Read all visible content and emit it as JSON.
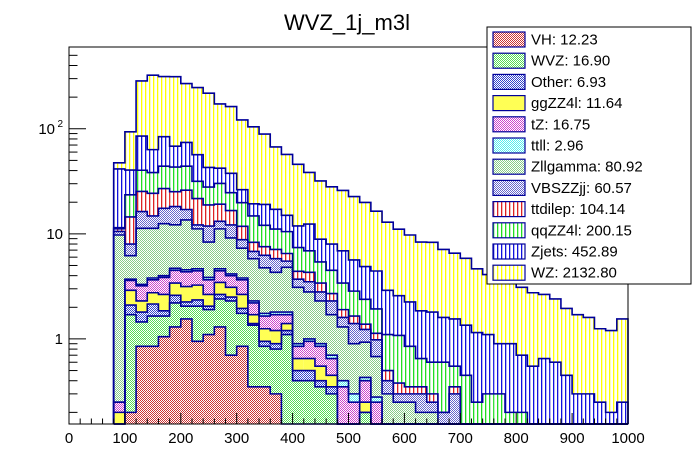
{
  "chart_data": {
    "type": "bar",
    "stacked": true,
    "title": "WVZ_1j_m3l",
    "xlabel": "",
    "ylabel": "",
    "yscale": "log",
    "xlim": [
      0,
      1000
    ],
    "ylim": [
      0.155,
      600
    ],
    "bin_width": 20,
    "x_bin_low_edges": [
      80,
      100,
      120,
      140,
      160,
      180,
      200,
      220,
      240,
      260,
      280,
      300,
      320,
      340,
      360,
      380,
      400,
      420,
      440,
      460,
      480,
      500,
      520,
      540,
      560,
      580,
      600,
      620,
      640,
      660,
      680,
      700,
      720,
      740,
      760,
      780,
      800,
      820,
      840,
      860,
      880,
      900,
      920,
      940,
      960,
      980
    ],
    "x_ticks": [
      "0",
      "100",
      "200",
      "300",
      "400",
      "500",
      "600",
      "700",
      "800",
      "900",
      "1000"
    ],
    "x_tick_values": [
      0,
      100,
      200,
      300,
      400,
      500,
      600,
      700,
      800,
      900,
      1000
    ],
    "y_ticks": [
      "1",
      "10",
      "10^2"
    ],
    "y_tick_values": [
      1,
      10,
      100
    ],
    "legend_position": "top-right",
    "cumulative_tops_note": "series values are per-bin contributions read from the stacked boundaries",
    "series": [
      {
        "name": "VH",
        "legend": "VH: 12.23",
        "fill": "#cc3333",
        "pattern": "checker",
        "values": [
          0,
          0.2,
          0.85,
          0.85,
          1.05,
          1.3,
          1.55,
          0.95,
          1.1,
          1.3,
          0.7,
          0.85,
          0.35,
          0.35,
          0.3,
          0,
          0,
          0,
          0,
          0,
          0,
          0,
          0,
          0,
          0,
          0,
          0,
          0,
          0,
          0,
          0,
          0,
          0,
          0,
          0,
          0,
          0,
          0,
          0,
          0,
          0,
          0,
          0,
          0,
          0,
          0
        ]
      },
      {
        "name": "WVZ",
        "legend": "WVZ: 16.90",
        "fill": "#55dd55",
        "pattern": "checker",
        "values": [
          0,
          1.5,
          0.6,
          0.8,
          0.6,
          0.9,
          0.5,
          1.1,
          0.8,
          1.1,
          1.6,
          0.9,
          1.0,
          0.5,
          0.5,
          1.1,
          0.4,
          0.4,
          0.35,
          0.3,
          0.0,
          0,
          0.2,
          0.15,
          0,
          0,
          0,
          0,
          0,
          0,
          0,
          0,
          0,
          0,
          0,
          0,
          0,
          0,
          0,
          0,
          0,
          0,
          0,
          0,
          0,
          0
        ]
      },
      {
        "name": "Other",
        "legend": "Other: 6.93",
        "fill": "#3344cc",
        "pattern": "checker",
        "values": [
          0.15,
          0.4,
          0.35,
          0.5,
          0.2,
          0.4,
          0.2,
          0.3,
          0.15,
          0.25,
          0.2,
          0.2,
          0.05,
          0.1,
          0.1,
          0.1,
          0.1,
          0.1,
          0.05,
          0.05,
          0.05,
          0,
          0,
          0,
          0,
          0,
          0,
          0,
          0,
          0,
          0,
          0,
          0,
          0,
          0,
          0,
          0,
          0,
          0,
          0,
          0,
          0,
          0,
          0,
          0,
          0
        ]
      },
      {
        "name": "ggZZ4l",
        "legend": "ggZZ4l: 11.64",
        "fill": "#ffff55",
        "pattern": "solid",
        "values": [
          0.05,
          0.8,
          0.5,
          0.6,
          0.8,
          0.8,
          0.9,
          0.9,
          0.6,
          0.8,
          0.6,
          0.7,
          0.3,
          0.3,
          0.3,
          0.2,
          0.15,
          0.15,
          0.15,
          0.1,
          0.1,
          0.05,
          0.05,
          0,
          0,
          0,
          0,
          0,
          0,
          0,
          0,
          0,
          0,
          0,
          0,
          0,
          0,
          0,
          0,
          0,
          0,
          0,
          0,
          0,
          0,
          0
        ]
      },
      {
        "name": "tZ",
        "legend": "tZ: 16.75",
        "fill": "#cc44cc",
        "pattern": "checker",
        "values": [
          0.05,
          0.7,
          0.9,
          0.9,
          1.2,
          1.1,
          1.2,
          1.2,
          1.0,
          1.0,
          0.9,
          1.0,
          0.5,
          0.4,
          0.5,
          0.3,
          0.2,
          0.3,
          0.3,
          0.2,
          0.2,
          0.2,
          0.15,
          0.1,
          0,
          0,
          0,
          0,
          0,
          0,
          0,
          0,
          0,
          0,
          0,
          0,
          0,
          0,
          0,
          0,
          0,
          0,
          0,
          0,
          0,
          0
        ]
      },
      {
        "name": "ttll",
        "legend": "ttll: 2.96",
        "fill": "#55eeee",
        "pattern": "checker",
        "values": [
          0,
          0.1,
          0.1,
          0.15,
          0.15,
          0.2,
          0.2,
          0.2,
          0.2,
          0.2,
          0.15,
          0.15,
          0.1,
          0.1,
          0.1,
          0.1,
          0.05,
          0.05,
          0.05,
          0.05,
          0.05,
          0.05,
          0.03,
          0.03,
          0,
          0,
          0,
          0,
          0,
          0,
          0,
          0,
          0,
          0,
          0,
          0,
          0,
          0,
          0,
          0,
          0,
          0,
          0,
          0,
          0,
          0
        ]
      },
      {
        "name": "Zllgamma",
        "legend": "Zllgamma: 80.92",
        "fill": "#88cc88",
        "pattern": "checker",
        "values": [
          9.5,
          2.5,
          8.0,
          7.5,
          8.5,
          7.5,
          9.0,
          6.5,
          4.5,
          6.5,
          5.0,
          3.5,
          3.5,
          3.0,
          2.5,
          3.0,
          2.2,
          1.8,
          1.4,
          1.0,
          0.9,
          0.6,
          0.5,
          0.4,
          0.3,
          0.25,
          0.25,
          0.2,
          0.2,
          0.1,
          0.15,
          0.1,
          0,
          0,
          0,
          0,
          0,
          0,
          0,
          0,
          0,
          0,
          0,
          0,
          0,
          0
        ]
      },
      {
        "name": "VBSZZjj",
        "legend": "VBSZZjj: 60.57",
        "fill": "#6666cc",
        "pattern": "checker",
        "values": [
          0.8,
          1.8,
          5.0,
          3.5,
          5.0,
          6.0,
          3.5,
          1.0,
          3.5,
          2.0,
          3.0,
          1.5,
          1.0,
          1.5,
          1.5,
          0.7,
          0.6,
          0.7,
          0.5,
          0.6,
          0.3,
          0.5,
          0.3,
          0.3,
          0.1,
          0.05,
          0.05,
          0.1,
          0.05,
          0.1,
          0.15,
          0,
          0.05,
          0,
          0,
          0,
          0,
          0,
          0,
          0,
          0,
          0,
          0,
          0,
          0,
          0
        ]
      },
      {
        "name": "ttdilep",
        "legend": "ttdilep: 104.14",
        "fill": "#dd2222",
        "pattern": "vlines",
        "values": [
          0.6,
          6.5,
          9.0,
          9.5,
          9.5,
          7.0,
          9.0,
          9.5,
          7.0,
          6.0,
          4.5,
          3.0,
          1.5,
          1.3,
          1.3,
          1.0,
          0.7,
          0.8,
          0.6,
          0.4,
          0.3,
          0.25,
          0.15,
          0.15,
          0.1,
          0.08,
          0.05,
          0.05,
          0.05,
          0,
          0.05,
          0.05,
          0,
          0,
          0,
          0,
          0,
          0,
          0,
          0,
          0,
          0,
          0,
          0,
          0,
          0
        ]
      },
      {
        "name": "qqZZ4l",
        "legend": "qqZZ4l: 200.15",
        "fill": "#22dd22",
        "pattern": "vlines",
        "values": [
          0.3,
          9.0,
          15.0,
          14.0,
          17.0,
          18.0,
          18.0,
          10.0,
          9.0,
          11.0,
          8.0,
          8.0,
          6.5,
          4.5,
          4.0,
          4.0,
          3.0,
          2.6,
          2.0,
          1.8,
          1.5,
          1.2,
          1.0,
          0.8,
          0.6,
          0.7,
          0.5,
          0.3,
          0.3,
          0.4,
          0.2,
          0.3,
          0.2,
          0.3,
          0.3,
          0.2,
          0.2,
          0.15,
          0.15,
          0.1,
          0.1,
          0,
          0,
          0,
          0,
          0
        ]
      },
      {
        "name": "Zjets",
        "legend": "Zjets: 452.89",
        "fill": "#1111dd",
        "pattern": "vlines",
        "values": [
          30,
          17,
          45,
          25,
          40,
          25,
          30,
          25,
          15,
          12,
          13,
          6.5,
          4.5,
          7,
          6,
          4.5,
          4.5,
          5.5,
          3.5,
          3.5,
          3.5,
          2.8,
          2.5,
          2.5,
          1.8,
          1.5,
          1.4,
          1.2,
          1.2,
          1.0,
          1.0,
          0.9,
          0.9,
          0.8,
          0.6,
          0.7,
          0.5,
          0.4,
          0.5,
          0.5,
          0.35,
          0.3,
          0.3,
          0.25,
          0.2,
          0.25
        ]
      },
      {
        "name": "WZ",
        "legend": "WZ: 2132.80",
        "fill": "#ffff00",
        "pattern": "vlines",
        "values": [
          6,
          53,
          200,
          260,
          230,
          245,
          195,
          190,
          175,
          130,
          125,
          95,
          85,
          70,
          50,
          42,
          34,
          26,
          23,
          20,
          19,
          17,
          15,
          12,
          10,
          8.5,
          7.5,
          6.5,
          6.5,
          5.5,
          5,
          4.5,
          3.5,
          3.0,
          2.5,
          2.5,
          2.4,
          2.2,
          2.0,
          1.8,
          1.5,
          1.4,
          1.3,
          1.0,
          1.0,
          1.3
        ]
      }
    ]
  }
}
